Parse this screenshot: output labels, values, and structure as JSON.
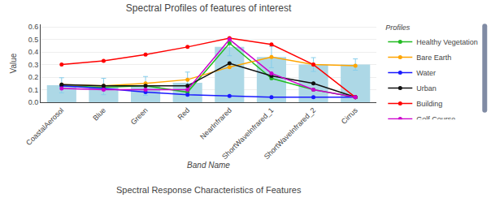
{
  "chart_data": {
    "type": "bar",
    "title": "Spectral Profiles of features of interest",
    "subtitle": "Spectral Response Characteristics of Features",
    "xlabel": "Band Name",
    "ylabel": "Value",
    "categories": [
      "CoastalAerosol",
      "Blue",
      "Green",
      "Red",
      "NearInfrared",
      "ShortWaveInfrared_1",
      "ShortWaveInfrared_2",
      "Cirrus"
    ],
    "values": [
      0.135,
      0.125,
      0.13,
      0.155,
      0.44,
      0.36,
      0.3,
      0.3
    ],
    "errors": [
      0.06,
      0.065,
      0.075,
      0.085,
      0.07,
      0.085,
      0.055,
      0.045
    ],
    "color": "#add8e6",
    "error_color": "#87CEEB",
    "series": [
      {
        "name": "Healthy Vegetation",
        "type": "line",
        "marker": "circle",
        "color": "#22bb22",
        "values": [
          0.13,
          0.12,
          0.13,
          0.08,
          0.47,
          0.19,
          0.1,
          0.04
        ]
      },
      {
        "name": "Bare Earth",
        "type": "line",
        "marker": "circle",
        "color": "#ffa500",
        "values": [
          0.14,
          0.13,
          0.15,
          0.18,
          0.28,
          0.36,
          0.3,
          0.29
        ]
      },
      {
        "name": "Water",
        "type": "line",
        "marker": "circle",
        "color": "#1a1aff",
        "values": [
          0.13,
          0.11,
          0.08,
          0.06,
          0.05,
          0.04,
          0.04,
          0.04
        ]
      },
      {
        "name": "Urban",
        "type": "line",
        "marker": "circle",
        "color": "#111111",
        "values": [
          0.14,
          0.13,
          0.13,
          0.13,
          0.31,
          0.21,
          0.15,
          0.04
        ]
      },
      {
        "name": "Building",
        "type": "line",
        "marker": "circle",
        "color": "#ff0000",
        "values": [
          0.3,
          0.33,
          0.38,
          0.44,
          0.51,
          0.46,
          0.3,
          0.04
        ]
      },
      {
        "name": "Golf Course",
        "type": "line",
        "marker": "circle",
        "color": "#cc00cc",
        "values": [
          0.11,
          0.1,
          0.1,
          0.1,
          0.5,
          0.23,
          0.1,
          0.04
        ]
      }
    ],
    "legend_title": "Profiles",
    "ylim": [
      0,
      0.62
    ],
    "yticks": [
      {
        "value": 0,
        "label": "0.0"
      },
      0.1,
      0.2,
      0.3,
      0.4,
      0.5,
      0.6
    ],
    "grid": true
  }
}
